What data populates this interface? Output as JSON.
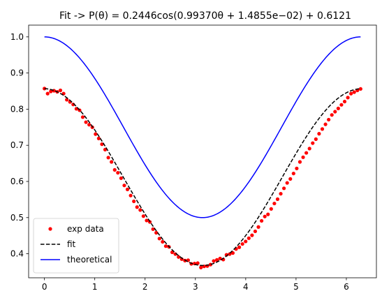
{
  "chart_data": {
    "type": "line",
    "title": "Fit -> P(θ) = 0.2446cos(0.99370θ + 1.4855e−02) + 0.6121",
    "xlabel": "",
    "ylabel": "",
    "xlim": [
      -0.3142,
      6.5974
    ],
    "ylim": [
      0.3335,
      1.0325
    ],
    "xticks": [
      0,
      1,
      2,
      3,
      4,
      5,
      6
    ],
    "yticks": [
      0.4,
      0.5,
      0.6,
      0.7,
      0.8,
      0.9,
      1.0
    ],
    "grid": false,
    "legend_position": "lower-left",
    "series": [
      {
        "name": "exp data",
        "kind": "scatter",
        "color": "#ff0000",
        "x": [
          0.0,
          0.0635,
          0.1269,
          0.1904,
          0.2539,
          0.3173,
          0.3808,
          0.4443,
          0.5077,
          0.5712,
          0.6347,
          0.6981,
          0.7616,
          0.8251,
          0.8885,
          0.952,
          1.0155,
          1.0789,
          1.1424,
          1.2059,
          1.2693,
          1.3328,
          1.3963,
          1.4597,
          1.5232,
          1.5867,
          1.6501,
          1.7136,
          1.7771,
          1.8405,
          1.904,
          1.9675,
          2.0309,
          2.0944,
          2.1579,
          2.2213,
          2.2848,
          2.3483,
          2.4117,
          2.4752,
          2.5387,
          2.6021,
          2.6656,
          2.7291,
          2.7925,
          2.856,
          2.9195,
          2.9829,
          3.0464,
          3.1099,
          3.1733,
          3.2368,
          3.3003,
          3.3637,
          3.4272,
          3.4907,
          3.5541,
          3.6176,
          3.6811,
          3.7445,
          3.808,
          3.8715,
          3.9349,
          3.9984,
          4.0619,
          4.1253,
          4.1888,
          4.2523,
          4.3157,
          4.3792,
          4.4427,
          4.5061,
          4.5696,
          4.6331,
          4.6965,
          4.76,
          4.8235,
          4.8869,
          4.9504,
          5.0139,
          5.0773,
          5.1408,
          5.2043,
          5.2677,
          5.3312,
          5.3947,
          5.4581,
          5.5216,
          5.5851,
          5.6485,
          5.712,
          5.7755,
          5.8389,
          5.9024,
          5.9659,
          6.0293,
          6.0928,
          6.1563,
          6.2197,
          6.2832
        ],
        "y": [
          0.857,
          0.843,
          0.849,
          0.851,
          0.848,
          0.852,
          0.843,
          0.826,
          0.82,
          0.813,
          0.801,
          0.797,
          0.778,
          0.764,
          0.757,
          0.75,
          0.731,
          0.719,
          0.703,
          0.688,
          0.666,
          0.654,
          0.632,
          0.624,
          0.609,
          0.589,
          0.578,
          0.561,
          0.545,
          0.529,
          0.521,
          0.504,
          0.492,
          0.488,
          0.468,
          0.458,
          0.442,
          0.433,
          0.421,
          0.419,
          0.404,
          0.399,
          0.391,
          0.385,
          0.381,
          0.382,
          0.372,
          0.373,
          0.374,
          0.362,
          0.365,
          0.366,
          0.37,
          0.38,
          0.383,
          0.387,
          0.384,
          0.397,
          0.399,
          0.402,
          0.413,
          0.418,
          0.427,
          0.434,
          0.443,
          0.451,
          0.462,
          0.474,
          0.491,
          0.503,
          0.509,
          0.524,
          0.539,
          0.551,
          0.566,
          0.581,
          0.596,
          0.607,
          0.622,
          0.636,
          0.654,
          0.667,
          0.679,
          0.691,
          0.706,
          0.717,
          0.732,
          0.745,
          0.758,
          0.771,
          0.784,
          0.793,
          0.802,
          0.812,
          0.821,
          0.832,
          0.843,
          0.847,
          0.852,
          0.856
        ]
      },
      {
        "name": "fit",
        "kind": "line",
        "style": "dashed",
        "color": "#000000",
        "x_range": [
          0,
          6.2832
        ],
        "formula": "0.2446*cos(0.99370*x + 0.014855) + 0.6121"
      },
      {
        "name": "theoretical",
        "kind": "line",
        "style": "solid",
        "color": "#0000ff",
        "x_range": [
          0,
          6.2832
        ],
        "formula": "0.75 + 0.25*cos(x)"
      }
    ]
  }
}
